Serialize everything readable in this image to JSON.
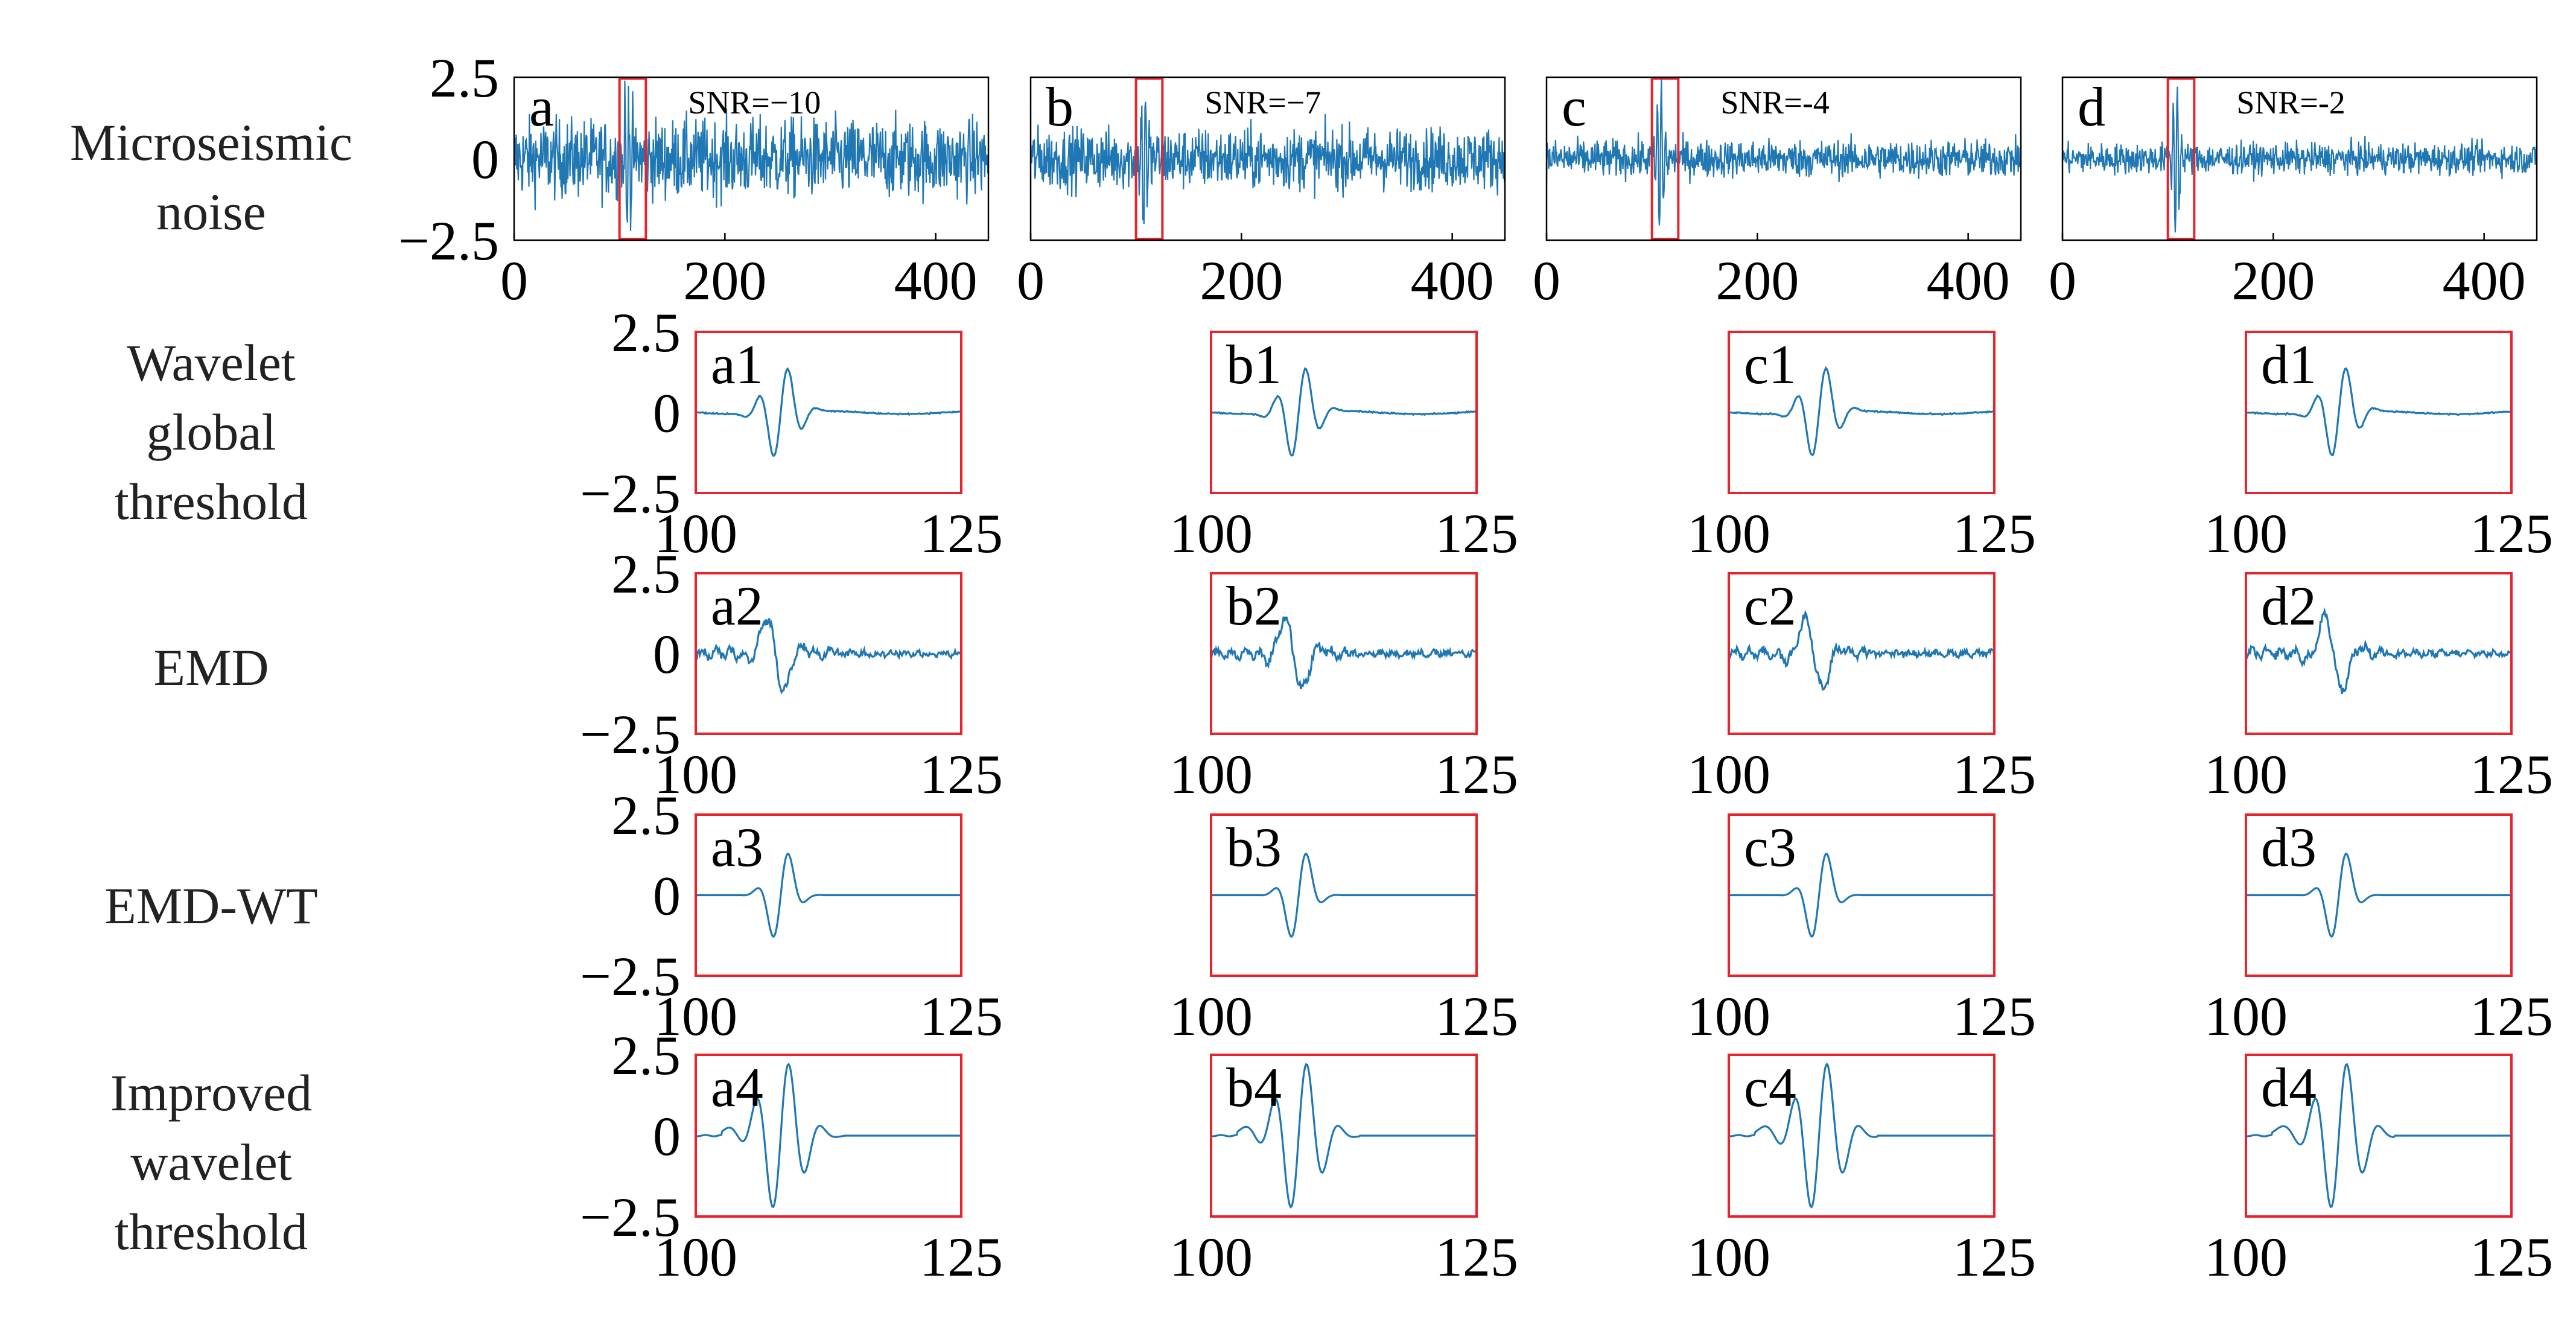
{
  "colors": {
    "trace": "#1f77b4",
    "highlight": "#e8232c",
    "axis": "#000000",
    "text": "#222222"
  },
  "chart_data": {
    "type": "line",
    "description_rows": [
      "noise",
      "wavelet_global",
      "emd",
      "emd_wt",
      "improved"
    ],
    "row_labels": {
      "noise": [
        "Microseismic",
        "noise"
      ],
      "wavelet_global": [
        "Wavelet",
        "global",
        "threshold"
      ],
      "emd": [
        "EMD"
      ],
      "emd_wt": [
        "EMD-WT"
      ],
      "improved": [
        "Improved",
        "wavelet",
        "threshold"
      ]
    },
    "noise_panels": [
      {
        "letter": "a",
        "snr_label": "SNR=−10",
        "snr": -10,
        "window": [
          100,
          125
        ]
      },
      {
        "letter": "b",
        "snr_label": "SNR=−7",
        "snr": -7,
        "window": [
          100,
          125
        ]
      },
      {
        "letter": "c",
        "snr_label": "SNR=-4",
        "snr": -4,
        "window": [
          100,
          125
        ]
      },
      {
        "letter": "d",
        "snr_label": "SNR=-2",
        "snr": -2,
        "window": [
          100,
          125
        ]
      }
    ],
    "noise_axis": {
      "xlim": [
        0,
        450
      ],
      "ylim": [
        -2.5,
        2.5
      ],
      "xticks": [
        0,
        200,
        400
      ],
      "xtick_labels": [
        "0",
        "200",
        "400"
      ],
      "yticks": [
        2.5,
        0,
        -2.5
      ],
      "ytick_labels": [
        "2.5",
        "0",
        "−2.5"
      ]
    },
    "zoom_axis": {
      "xlim": [
        100,
        125
      ],
      "ylim": [
        -2.5,
        2.5
      ],
      "xticks": [
        100,
        125
      ],
      "xtick_labels": [
        "100",
        "125"
      ],
      "yticks": [
        2.5,
        0,
        -2.5
      ],
      "ytick_labels": [
        "2.5",
        "0",
        "−2.5"
      ]
    },
    "zoom_panels": {
      "wavelet_global": [
        "a1",
        "b1",
        "c1",
        "d1"
      ],
      "emd": [
        "a2",
        "b2",
        "c2",
        "d2"
      ],
      "emd_wt": [
        "a3",
        "b3",
        "c3",
        "d3"
      ],
      "improved": [
        "a4",
        "b4",
        "c4",
        "d4"
      ]
    },
    "method_amplitude": {
      "wavelet_global": 1.5,
      "emd": 1.4,
      "emd_wt": 1.6,
      "improved": 2.4
    }
  }
}
